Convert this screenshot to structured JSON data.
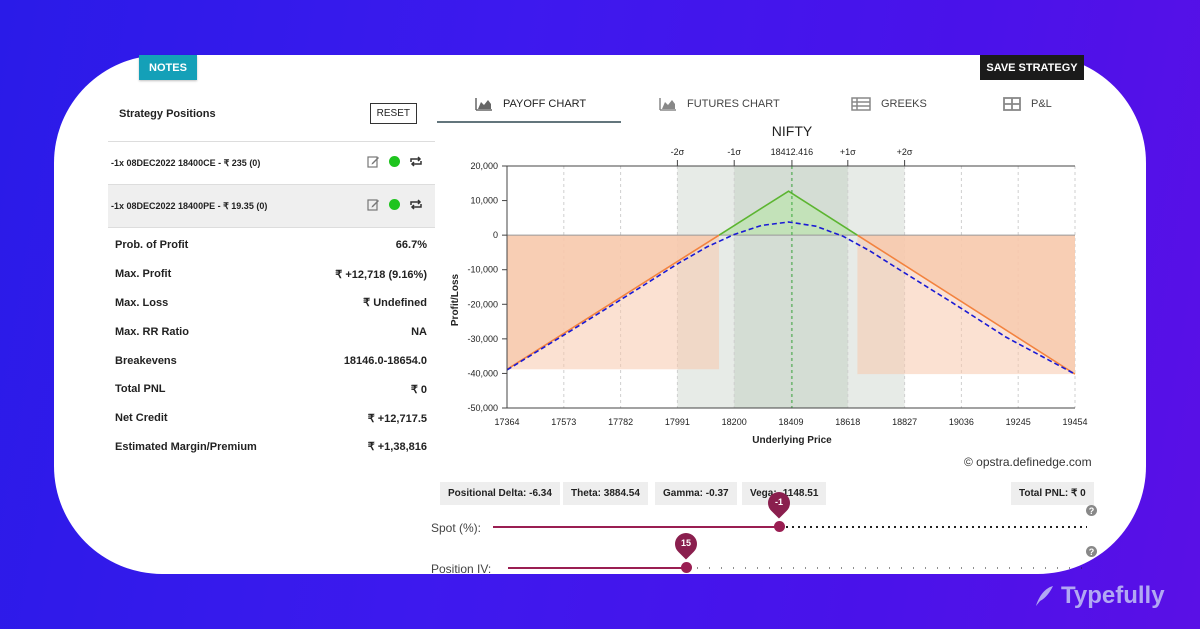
{
  "buttons": {
    "notes": "NOTES",
    "save": "SAVE STRATEGY",
    "reset": "RESET"
  },
  "left": {
    "title": "Strategy Positions",
    "positions": [
      {
        "label": "-1x  08DEC2022  18400CE  - ₹ 235   (0)"
      },
      {
        "label": "-1x  08DEC2022  18400PE  - ₹ 19.35   (0)"
      }
    ],
    "stats": [
      {
        "label": "Prob. of Profit",
        "value": "66.7%"
      },
      {
        "label": "Max. Profit",
        "value": "₹ +12,718 (9.16%)"
      },
      {
        "label": "Max. Loss",
        "value": "₹ Undefined"
      },
      {
        "label": "Max. RR Ratio",
        "value": "NA"
      },
      {
        "label": "Breakevens",
        "value": "18146.0-18654.0"
      },
      {
        "label": "Total PNL",
        "value": "₹ 0"
      },
      {
        "label": "Net Credit",
        "value": "₹ +12,717.5"
      },
      {
        "label": "Estimated Margin/Premium",
        "value": "₹ +1,38,816"
      }
    ]
  },
  "tabs": [
    {
      "label": "PAYOFF CHART",
      "icon": "area-chart-icon",
      "active": true
    },
    {
      "label": "FUTURES CHART",
      "icon": "area-chart-icon",
      "active": false
    },
    {
      "label": "GREEKS",
      "icon": "table-icon",
      "active": false
    },
    {
      "label": "P&L",
      "icon": "grid-icon",
      "active": false
    }
  ],
  "metrics": {
    "delta": "Positional Delta: -6.34",
    "theta": "Theta: 3884.54",
    "gamma": "Gamma: -0.37",
    "vega": "Vega: -1148.51",
    "total_pnl": "Total PNL: ₹ 0"
  },
  "sliders": {
    "spot": {
      "label": "Spot (%):",
      "value": "-1"
    },
    "iv": {
      "label": "Position IV:",
      "value": "15"
    }
  },
  "credit": "© opstra.definedge.com",
  "watermark": "Typefully",
  "colors": {
    "profit": "#5cb531",
    "loss": "#f3823e",
    "t0": "#1a1ad4",
    "spot": "#39a83a",
    "accent": "#9a1e52"
  },
  "chart_data": {
    "type": "line",
    "title": "NIFTY",
    "xlabel": "Underlying Price",
    "ylabel": "Profit/Loss",
    "xlim": [
      17364,
      19454
    ],
    "ylim": [
      -50000,
      20000
    ],
    "x_ticks": [
      17364,
      17573,
      17782,
      17991,
      18200,
      18409,
      18618,
      18827,
      19036,
      19245,
      19454
    ],
    "y_ticks": [
      20000,
      10000,
      0,
      -10000,
      -20000,
      -30000,
      -40000,
      -50000
    ],
    "x_tick_labels": [
      "17364",
      "17573",
      "17782",
      "17991",
      "18200",
      "18409",
      "18618",
      "18827",
      "19036",
      "19245",
      "19454"
    ],
    "y_tick_labels": [
      "20,000",
      "10,000",
      "0",
      "-10,000",
      "-20,000",
      "-30,000",
      "-40,000",
      "-50,000"
    ],
    "spot": 18412.416,
    "spot_label": "18412.416",
    "sigma_bands": [
      {
        "label": "-2σ",
        "value": 17991
      },
      {
        "label": "-1σ",
        "value": 18200
      },
      {
        "label": "+1σ",
        "value": 18618
      },
      {
        "label": "+2σ",
        "value": 18827
      }
    ],
    "series": [
      {
        "kind": "expiry",
        "x": [
          17364,
          18400,
          19454
        ],
        "y": [
          -38800,
          12718,
          -40200
        ]
      },
      {
        "kind": "t0",
        "x": [
          17364,
          17600,
          17800,
          18000,
          18100,
          18200,
          18300,
          18400,
          18500,
          18600,
          18700,
          18800,
          19000,
          19200,
          19454
        ],
        "y": [
          -39000,
          -27600,
          -17800,
          -7900,
          -3400,
          200,
          2800,
          3800,
          2600,
          -300,
          -4600,
          -9600,
          -19400,
          -29500,
          -40200
        ]
      }
    ]
  }
}
